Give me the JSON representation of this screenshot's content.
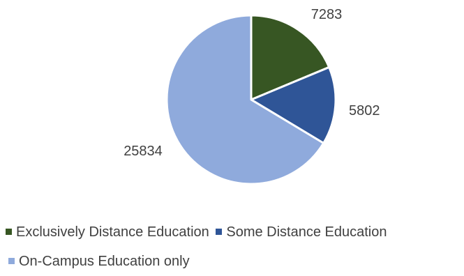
{
  "chart_data": {
    "type": "pie",
    "title": "",
    "slices": [
      {
        "label": "Exclusively Distance Education",
        "value": 7283,
        "value_label": "7283",
        "color": "#375623"
      },
      {
        "label": "Some Distance Education",
        "value": 5802,
        "value_label": "5802",
        "color": "#2F5597"
      },
      {
        "label": "On-Campus Education only",
        "value": 25834,
        "value_label": "25834",
        "color": "#8FAADC"
      }
    ],
    "start_angle": "12 o'clock",
    "direction": "clockwise",
    "legend_position": "bottom",
    "slice_border_color": "#ffffff"
  }
}
